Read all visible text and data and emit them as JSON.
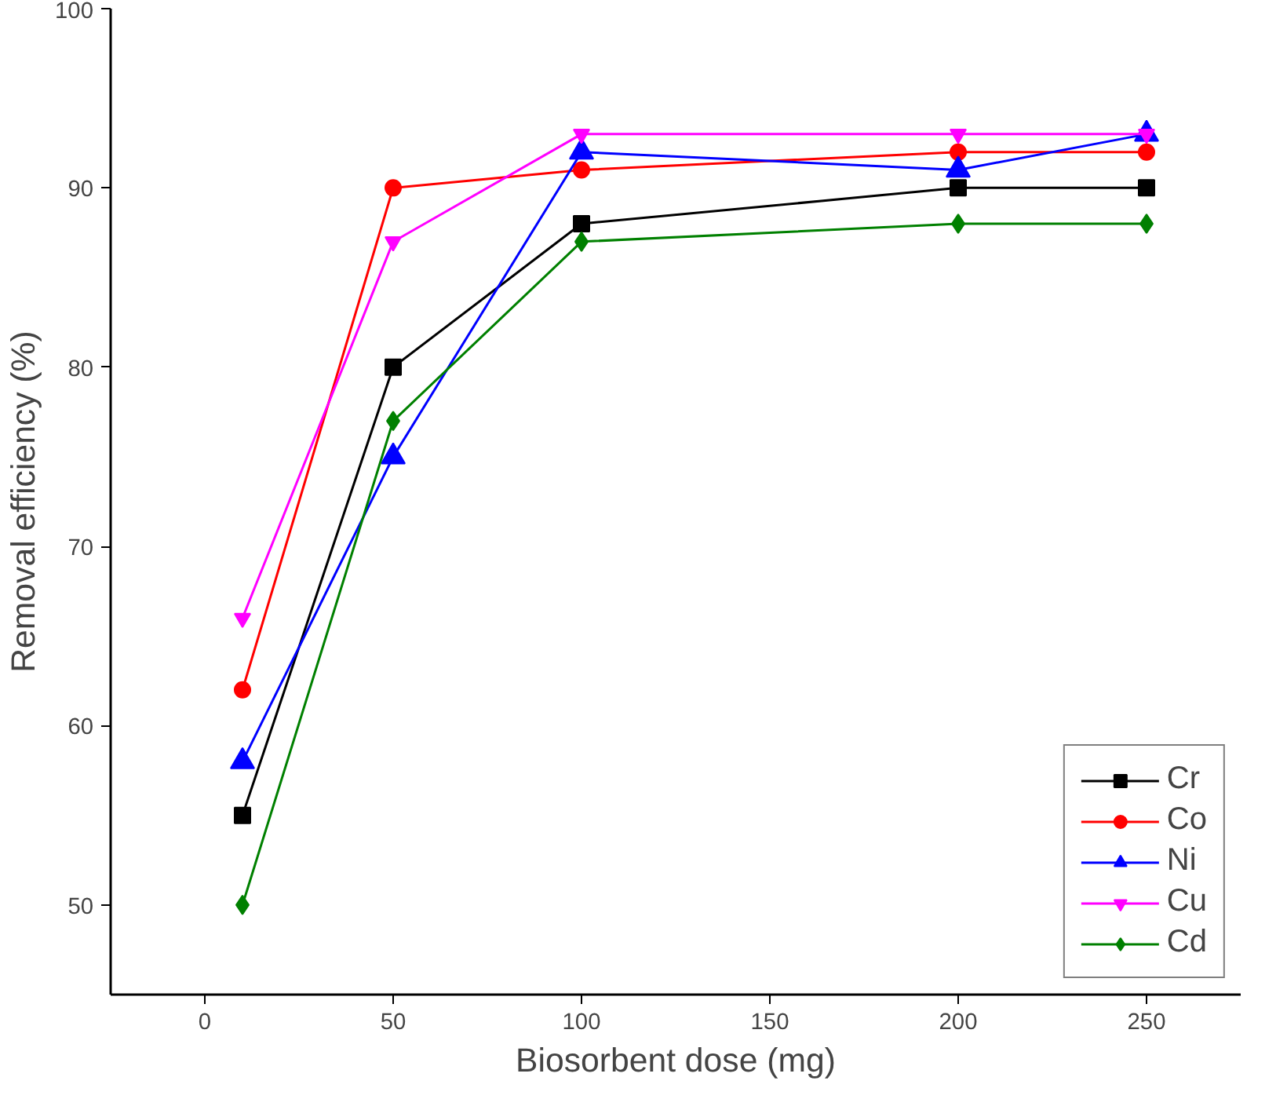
{
  "chart_data": {
    "type": "line",
    "xlabel": "Biosorbent dose (mg)",
    "ylabel": "Removal efficiency (%)",
    "x": [
      10,
      50,
      100,
      200,
      250
    ],
    "xlim": [
      -25,
      275
    ],
    "xticks": [
      0,
      50,
      100,
      150,
      200,
      250
    ],
    "ylim": [
      45,
      100
    ],
    "yticks": [
      50,
      60,
      70,
      80,
      90,
      100
    ],
    "grid": false,
    "legend": "bottom right",
    "line_style": "solid",
    "series": [
      {
        "name": "Cr",
        "color": "#000000",
        "marker": "square",
        "values": [
          55,
          80,
          88,
          90,
          90
        ]
      },
      {
        "name": "Co",
        "color": "#ff0000",
        "marker": "circle",
        "values": [
          62,
          90,
          91,
          92,
          92
        ]
      },
      {
        "name": "Ni",
        "color": "#0000ff",
        "marker": "triangle",
        "values": [
          58,
          75,
          92,
          91,
          93
        ]
      },
      {
        "name": "Cu",
        "color": "#ff00ff",
        "marker": "triangle-down",
        "values": [
          66,
          87,
          93,
          93,
          93
        ]
      },
      {
        "name": "Cd",
        "color": "#008000",
        "marker": "diamond",
        "values": [
          50,
          77,
          87,
          88,
          88
        ]
      }
    ]
  }
}
